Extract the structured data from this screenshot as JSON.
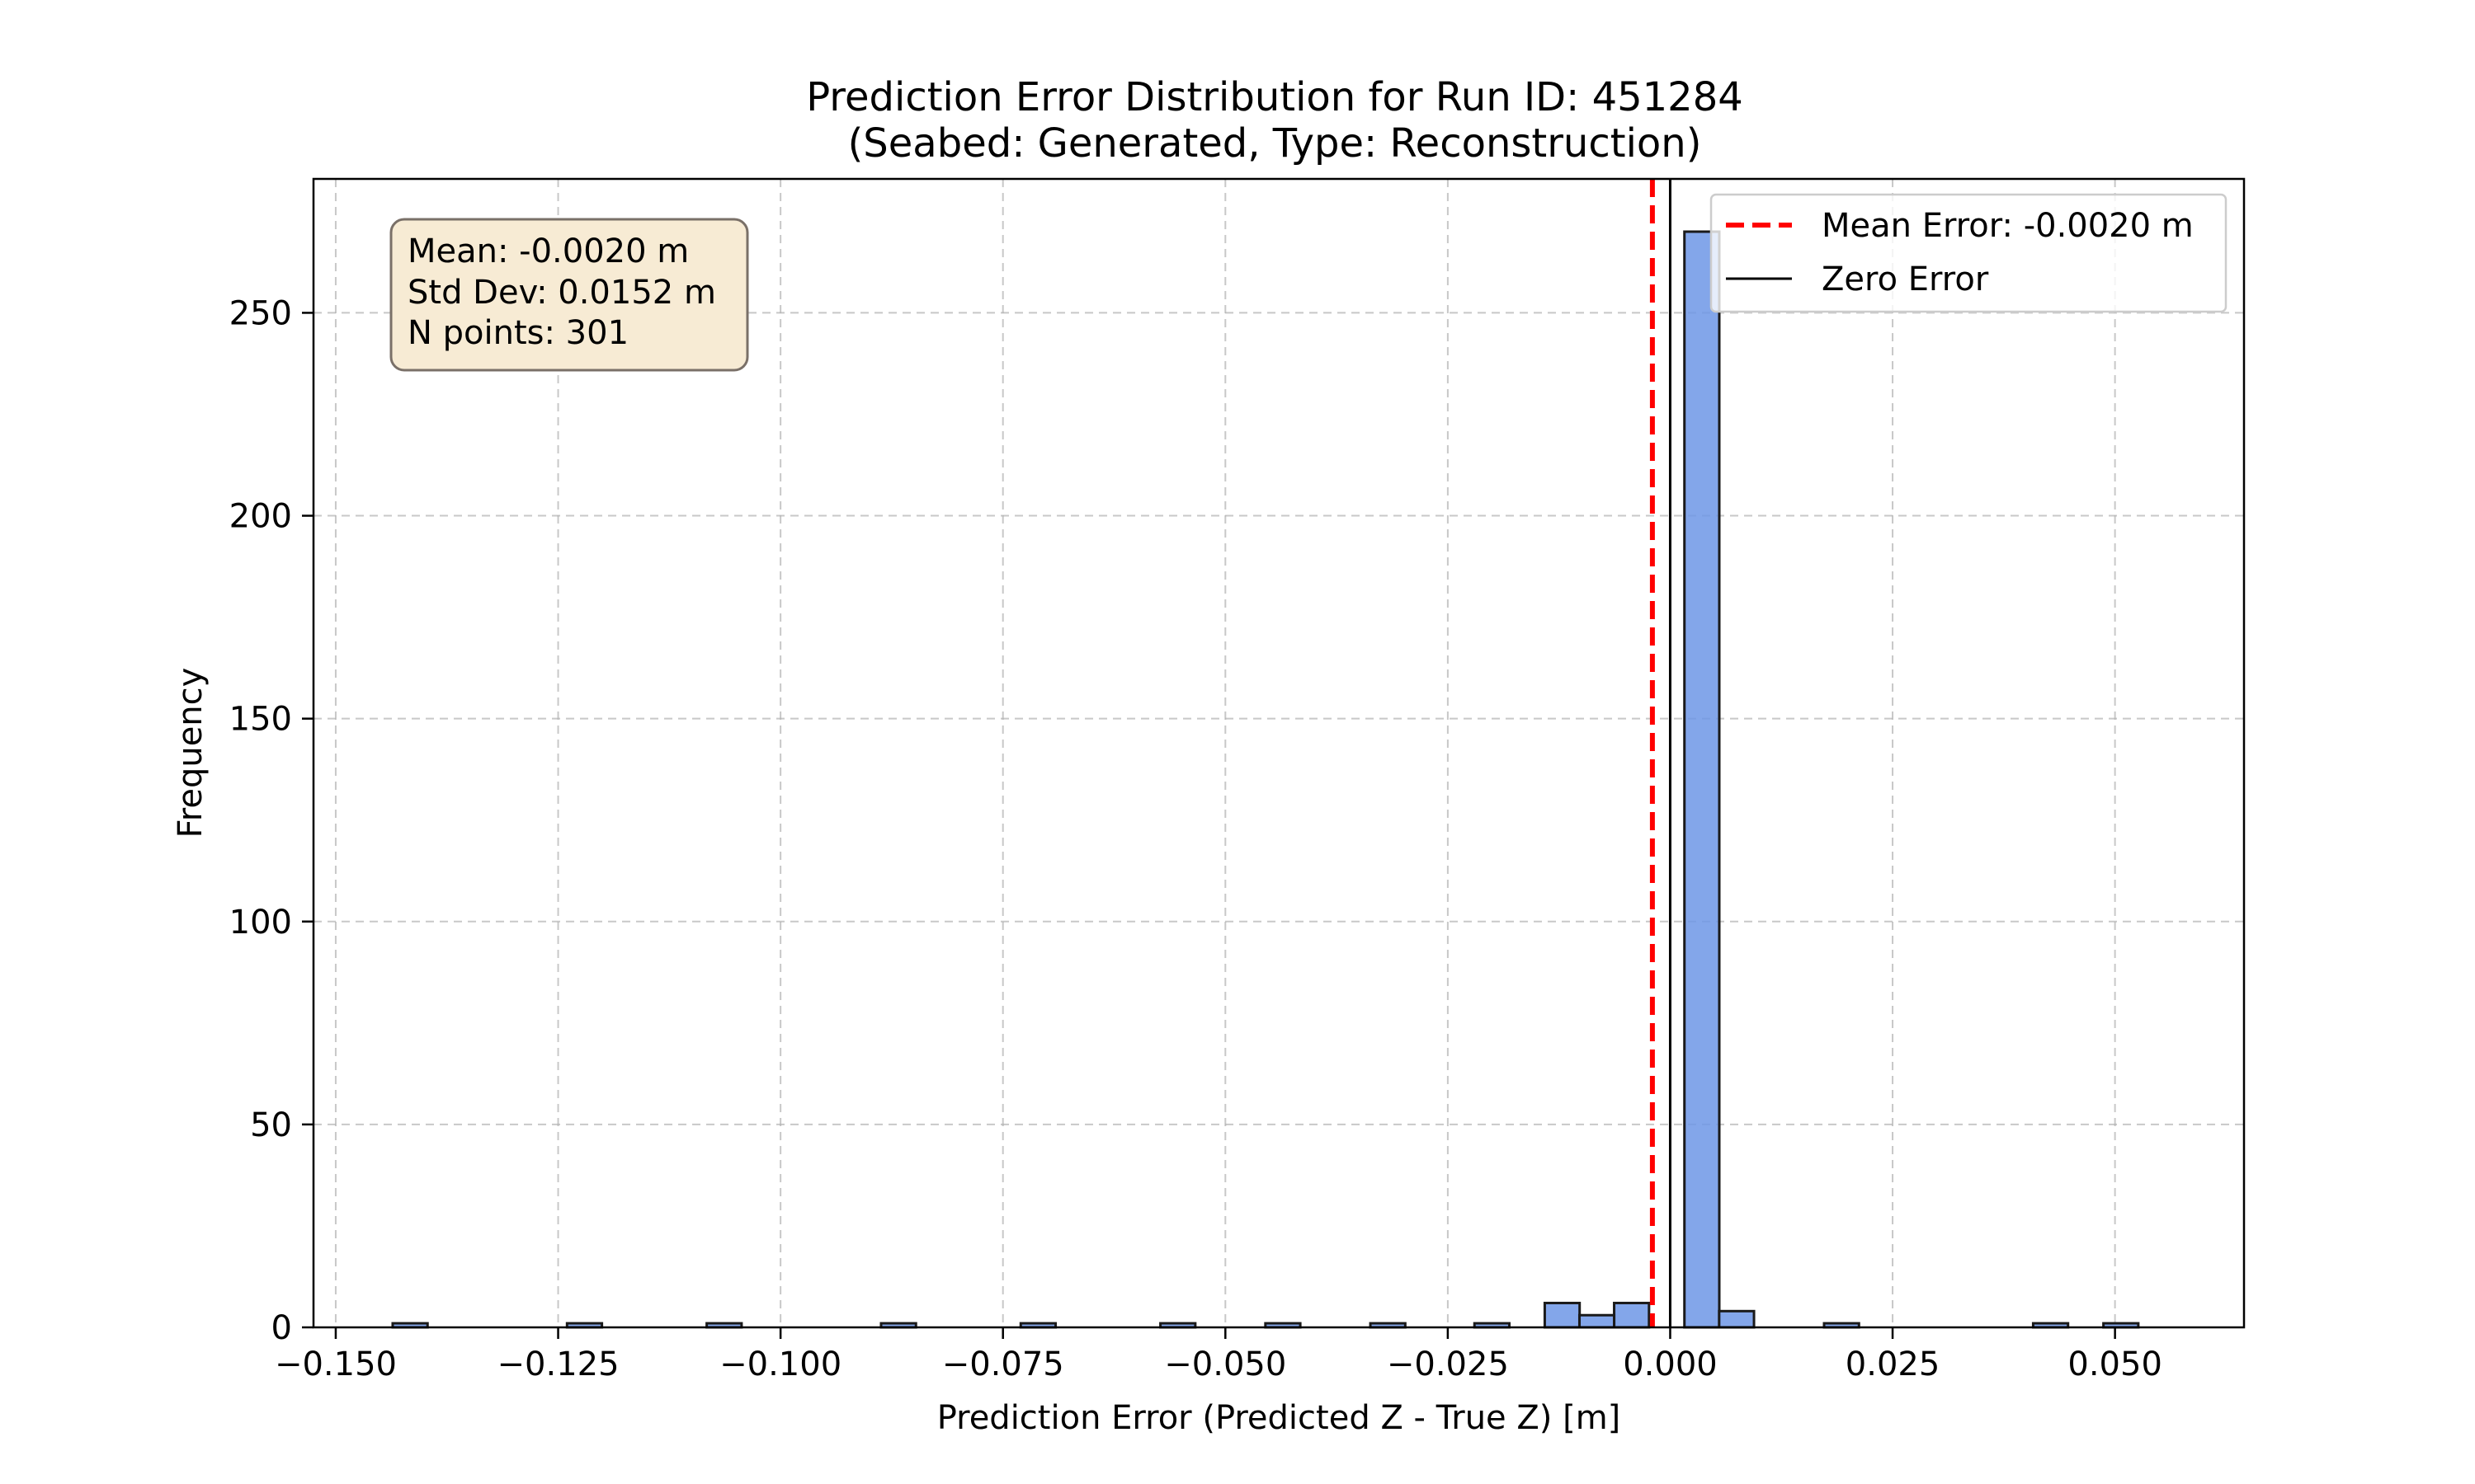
{
  "chart_data": {
    "type": "bar",
    "title": "Prediction Error Distribution for Run ID: 451284",
    "subtitle": "(Seabed: Generated, Type: Reconstruction)",
    "xlabel": "Prediction Error (Predicted Z - True Z) [m]",
    "ylabel": "Frequency",
    "xlim": [
      -0.1525,
      0.0645
    ],
    "ylim": [
      0,
      283
    ],
    "xticks": [
      -0.15,
      -0.125,
      -0.1,
      -0.075,
      -0.05,
      -0.025,
      0.0,
      0.025,
      0.05
    ],
    "xtick_labels": [
      "−0.150",
      "−0.125",
      "−0.100",
      "−0.075",
      "−0.050",
      "−0.025",
      "0.000",
      "0.025",
      "0.050"
    ],
    "yticks": [
      0,
      50,
      100,
      150,
      200,
      250
    ],
    "ytick_labels": [
      "0",
      "50",
      "100",
      "150",
      "200",
      "250"
    ],
    "grid": true,
    "bar_color": "#6d96e6",
    "bin_width": 0.00392,
    "bins": [
      {
        "x": -0.1436,
        "count": 1
      },
      {
        "x": -0.124,
        "count": 1
      },
      {
        "x": -0.1083,
        "count": 1
      },
      {
        "x": -0.0887,
        "count": 1
      },
      {
        "x": -0.073,
        "count": 1
      },
      {
        "x": -0.0573,
        "count": 1
      },
      {
        "x": -0.0455,
        "count": 1
      },
      {
        "x": -0.0337,
        "count": 1
      },
      {
        "x": -0.022,
        "count": 1
      },
      {
        "x": -0.0141,
        "count": 6
      },
      {
        "x": -0.0102,
        "count": 3
      },
      {
        "x": -0.0063,
        "count": 6
      },
      {
        "x": -0.0024,
        "count": 0
      },
      {
        "x": 0.0016,
        "count": 270
      },
      {
        "x": 0.0055,
        "count": 4
      },
      {
        "x": 0.0173,
        "count": 1
      },
      {
        "x": 0.0408,
        "count": 1
      },
      {
        "x": 0.0487,
        "count": 1
      }
    ],
    "lines": [
      {
        "name": "Mean Error: -0.0020 m",
        "x": -0.002,
        "color": "#ff0000",
        "style": "dashed"
      },
      {
        "name": "Zero Error",
        "x": 0.0,
        "color": "#000000",
        "style": "solid"
      }
    ],
    "legend_position": "top-right",
    "stats_box": [
      "Mean: -0.0020 m",
      "Std Dev: 0.0152 m",
      "N points: 301"
    ],
    "stats_box_color": "#f7ebd4"
  }
}
